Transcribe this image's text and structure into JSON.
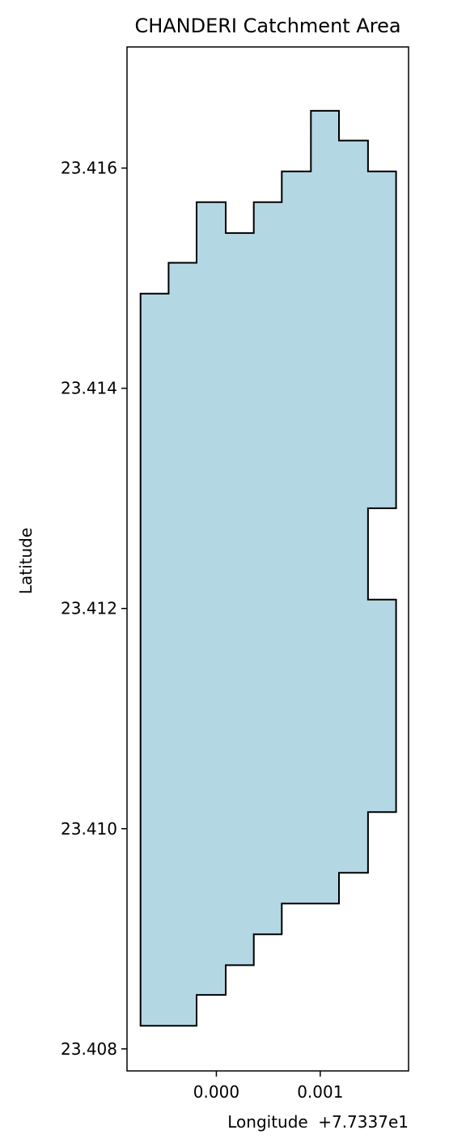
{
  "chart_data": {
    "type": "area",
    "title": "CHANDERI Catchment Area",
    "xlabel": "Longitude",
    "ylabel": "Latitude",
    "x_offset_label": "+7.7337e1",
    "x_ticks": [
      0.0,
      0.001
    ],
    "x_tick_labels": [
      "0.000",
      "0.001"
    ],
    "y_ticks": [
      23.408,
      23.41,
      23.412,
      23.414,
      23.416
    ],
    "y_tick_labels": [
      "23.408",
      "23.410",
      "23.412",
      "23.414",
      "23.416"
    ],
    "xlim": [
      -0.00086,
      0.00185
    ],
    "ylim": [
      23.4078,
      23.4171
    ],
    "fill_color": "#b4d7e4",
    "edge_color": "#000000",
    "polygon": [
      [
        -0.00073,
        23.40821
      ],
      [
        -0.00019,
        23.40821
      ],
      [
        -0.00019,
        23.40849
      ],
      [
        9e-05,
        23.40849
      ],
      [
        9e-05,
        23.40876
      ],
      [
        0.00036,
        23.40876
      ],
      [
        0.00036,
        23.40904
      ],
      [
        0.00063,
        23.40904
      ],
      [
        0.00063,
        23.40932
      ],
      [
        0.00118,
        23.40932
      ],
      [
        0.00118,
        23.4096
      ],
      [
        0.00146,
        23.4096
      ],
      [
        0.00146,
        23.41015
      ],
      [
        0.00173,
        23.41015
      ],
      [
        0.00173,
        23.41208
      ],
      [
        0.00146,
        23.41208
      ],
      [
        0.00146,
        23.41291
      ],
      [
        0.00173,
        23.41291
      ],
      [
        0.00173,
        23.41597
      ],
      [
        0.00146,
        23.41597
      ],
      [
        0.00146,
        23.41625
      ],
      [
        0.00118,
        23.41625
      ],
      [
        0.00118,
        23.41652
      ],
      [
        0.00091,
        23.41652
      ],
      [
        0.00091,
        23.41597
      ],
      [
        0.00063,
        23.41597
      ],
      [
        0.00063,
        23.41569
      ],
      [
        0.00036,
        23.41569
      ],
      [
        0.00036,
        23.41541
      ],
      [
        9e-05,
        23.41541
      ],
      [
        9e-05,
        23.41569
      ],
      [
        -0.00019,
        23.41569
      ],
      [
        -0.00019,
        23.41514
      ],
      [
        -0.00046,
        23.41514
      ],
      [
        -0.00046,
        23.41486
      ],
      [
        -0.00073,
        23.41486
      ]
    ]
  }
}
